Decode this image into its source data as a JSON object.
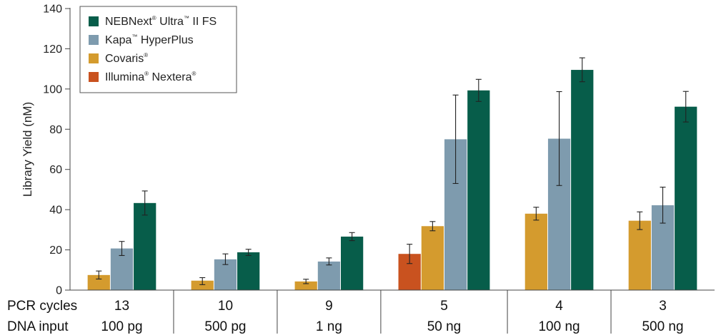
{
  "chart_data": {
    "type": "bar",
    "ylabel": "Library Yield (nM)",
    "ylim": [
      0,
      140
    ],
    "yticks": [
      0,
      20,
      40,
      60,
      80,
      100,
      120,
      140
    ],
    "grid": false,
    "legend_position": "top-left",
    "row_labels": [
      "PCR cycles",
      "DNA input"
    ],
    "groups": [
      {
        "pcr_cycles": "13",
        "dna_input": "100 pg",
        "bars": [
          {
            "series": "Covaris",
            "value": 7.5,
            "err_low": 5.5,
            "err_high": 9.5
          },
          {
            "series": "Kapa HyperPlus",
            "value": 20.7,
            "err_low": 17.2,
            "err_high": 24.2
          },
          {
            "series": "NEBNext Ultra II FS",
            "value": 43.3,
            "err_low": 37.3,
            "err_high": 49.3
          }
        ]
      },
      {
        "pcr_cycles": "10",
        "dna_input": "500 pg",
        "bars": [
          {
            "series": "Covaris",
            "value": 4.7,
            "err_low": 2.7,
            "err_high": 6.2
          },
          {
            "series": "Kapa HyperPlus",
            "value": 15.3,
            "err_low": 12.7,
            "err_high": 18.0
          },
          {
            "series": "NEBNext Ultra II FS",
            "value": 18.8,
            "err_low": 17.2,
            "err_high": 20.3
          }
        ]
      },
      {
        "pcr_cycles": "9",
        "dna_input": "1 ng",
        "bars": [
          {
            "series": "Covaris",
            "value": 4.3,
            "err_low": 3.2,
            "err_high": 5.4
          },
          {
            "series": "Kapa HyperPlus",
            "value": 14.2,
            "err_low": 12.5,
            "err_high": 16.0
          },
          {
            "series": "NEBNext Ultra II FS",
            "value": 26.6,
            "err_low": 24.6,
            "err_high": 28.6
          }
        ]
      },
      {
        "pcr_cycles": "5",
        "dna_input": "50 ng",
        "bars": [
          {
            "series": "Illumina Nextera",
            "value": 18.0,
            "err_low": 13.2,
            "err_high": 22.8
          },
          {
            "series": "Covaris",
            "value": 31.8,
            "err_low": 29.5,
            "err_high": 34.1
          },
          {
            "series": "Kapa HyperPlus",
            "value": 75.0,
            "err_low": 53.0,
            "err_high": 97.0
          },
          {
            "series": "NEBNext Ultra II FS",
            "value": 99.3,
            "err_low": 93.8,
            "err_high": 104.8
          }
        ]
      },
      {
        "pcr_cycles": "4",
        "dna_input": "100 ng",
        "bars": [
          {
            "series": "Covaris",
            "value": 38.0,
            "err_low": 34.8,
            "err_high": 41.2
          },
          {
            "series": "Kapa HyperPlus",
            "value": 75.3,
            "err_low": 52.0,
            "err_high": 98.7
          },
          {
            "series": "NEBNext Ultra II FS",
            "value": 109.5,
            "err_low": 103.6,
            "err_high": 115.5
          }
        ]
      },
      {
        "pcr_cycles": "3",
        "dna_input": "500 ng",
        "bars": [
          {
            "series": "Covaris",
            "value": 34.5,
            "err_low": 30.1,
            "err_high": 38.9
          },
          {
            "series": "Kapa HyperPlus",
            "value": 42.2,
            "err_low": 33.3,
            "err_high": 51.2
          },
          {
            "series": "NEBNext Ultra II FS",
            "value": 91.2,
            "err_low": 83.6,
            "err_high": 98.8
          }
        ]
      }
    ],
    "series": [
      {
        "key": "NEBNext Ultra II FS",
        "name": "NEBNext",
        "mark1": "®",
        "name2": " Ultra",
        "mark2": "™",
        "name3": " II FS",
        "color": "#075d4a"
      },
      {
        "key": "Kapa HyperPlus",
        "name": "Kapa",
        "mark1": "™",
        "name2": " HyperPlus",
        "mark2": "",
        "name3": "",
        "color": "#7e9bae"
      },
      {
        "key": "Covaris",
        "name": "Covaris",
        "mark1": "®",
        "name2": "",
        "mark2": "",
        "name3": "",
        "color": "#d49b2e"
      },
      {
        "key": "Illumina Nextera",
        "name": "Illumina",
        "mark1": "®",
        "name2": " Nextera",
        "mark2": "®",
        "name3": "",
        "color": "#c9521f"
      }
    ]
  }
}
